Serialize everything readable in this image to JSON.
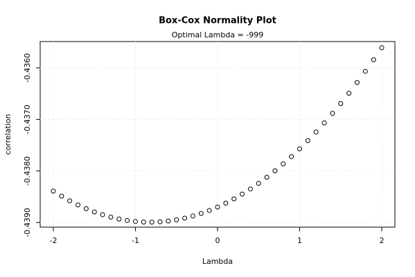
{
  "chart_data": {
    "type": "scatter",
    "title": "Box-Cox Normality Plot",
    "subtitle": "Optimal Lambda = -999",
    "x_label": "Lambda",
    "y_label": "correlation",
    "x": [
      -2,
      -1.9,
      -1.8,
      -1.7,
      -1.6,
      -1.5,
      -1.4,
      -1.3,
      -1.2,
      -1.1,
      -1,
      -0.9,
      -0.8,
      -0.7,
      -0.6,
      -0.5,
      -0.4,
      -0.3,
      -0.2,
      -0.1,
      0,
      0.1,
      0.2,
      0.3,
      0.4,
      0.5,
      0.6,
      0.7,
      0.8,
      0.9,
      1,
      1.1,
      1.2,
      1.3,
      1.4,
      1.5,
      1.6,
      1.7,
      1.8,
      1.9,
      2
    ],
    "values": [
      -0.43839,
      -0.438489,
      -0.438579,
      -0.438659,
      -0.438732,
      -0.438795,
      -0.438849,
      -0.438895,
      -0.438932,
      -0.43896,
      -0.43898,
      -0.438991,
      -0.438993,
      -0.438986,
      -0.438971,
      -0.438947,
      -0.438915,
      -0.438874,
      -0.438825,
      -0.438767,
      -0.4387,
      -0.438625,
      -0.438541,
      -0.438449,
      -0.438349,
      -0.43824,
      -0.438123,
      -0.437997,
      -0.437863,
      -0.437721,
      -0.43757,
      -0.437411,
      -0.437244,
      -0.437068,
      -0.436884,
      -0.436692,
      -0.436492,
      -0.436284,
      -0.436067,
      -0.435843,
      -0.43561
    ],
    "color": "#000000",
    "xlim": [
      -2.16,
      2.16
    ],
    "ylim": [
      -0.43909,
      -0.43549
    ],
    "xticks": [
      -2,
      -1,
      0,
      1,
      2
    ],
    "yticks": [
      {
        "value": -0.439,
        "label": "-0.4390"
      },
      {
        "value": -0.438,
        "label": "-0.4380"
      },
      {
        "value": -0.437,
        "label": "-0.4370"
      },
      {
        "value": -0.436,
        "label": "-0.4360"
      }
    ],
    "grid": true
  }
}
